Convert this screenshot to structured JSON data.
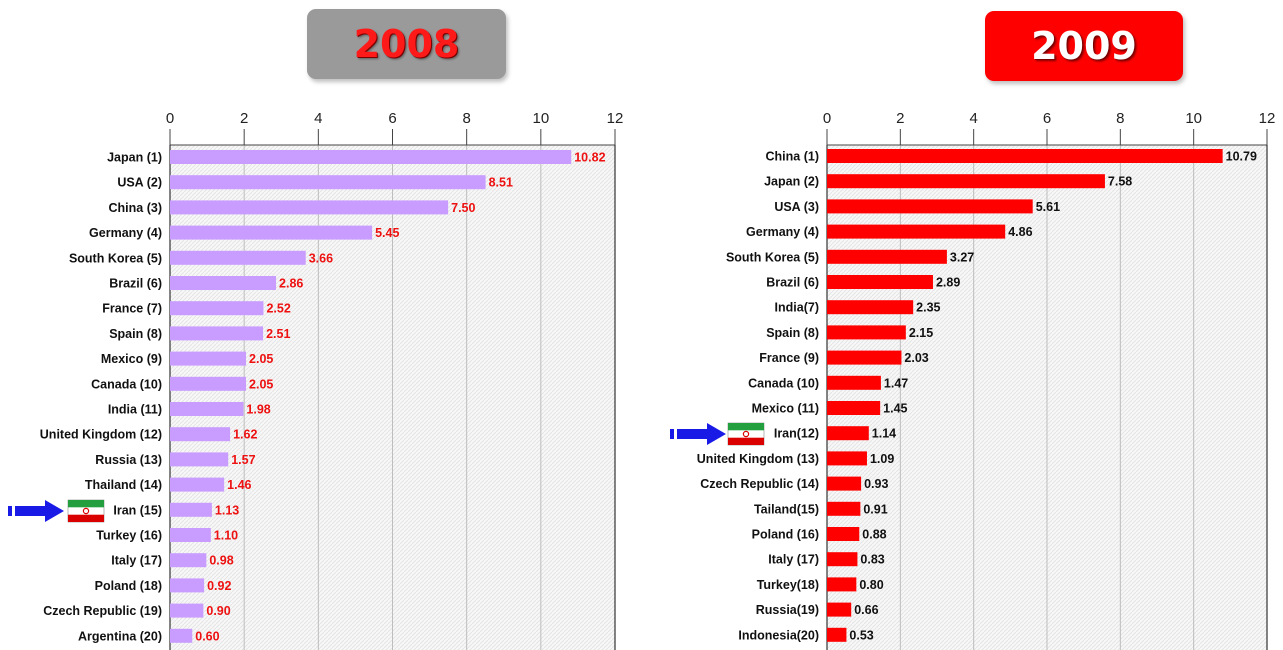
{
  "badges": {
    "left": "2008",
    "right": "2009"
  },
  "colors": {
    "bar_2008": "#c99cff",
    "bar_2009": "#ff0000",
    "value_2008": "#ee1111",
    "value_2009": "#111111",
    "arrow": "#1a1ae6",
    "badge_2008_bg": "#9a9a9a",
    "badge_2009_bg": "#ff0000"
  },
  "icons": [
    "blue-arrow-icon",
    "iran-flag-icon"
  ],
  "chart_data": [
    {
      "type": "bar",
      "orientation": "horizontal",
      "title": "2008",
      "xlim": [
        0,
        12
      ],
      "ticks": [
        0,
        2,
        4,
        6,
        8,
        10,
        12
      ],
      "grid": true,
      "highlight": "Iran (15)",
      "categories": [
        "Japan (1)",
        "USA (2)",
        "China (3)",
        "Germany (4)",
        "South Korea (5)",
        "Brazil (6)",
        "France (7)",
        "Spain (8)",
        "Mexico (9)",
        "Canada (10)",
        "India (11)",
        "United Kingdom (12)",
        "Russia (13)",
        "Thailand (14)",
        "Iran (15)",
        "Turkey (16)",
        "Italy (17)",
        "Poland (18)",
        "Czech Republic (19)",
        "Argentina (20)"
      ],
      "values": [
        10.82,
        8.51,
        7.5,
        5.45,
        3.66,
        2.86,
        2.52,
        2.51,
        2.05,
        2.05,
        1.98,
        1.62,
        1.57,
        1.46,
        1.13,
        1.1,
        0.98,
        0.92,
        0.9,
        0.6
      ],
      "value_labels": [
        "10.82",
        "8.51",
        "7.50",
        "5.45",
        "3.66",
        "2.86",
        "2.52",
        "2.51",
        "2.05",
        "2.05",
        "1.98",
        "1.62",
        "1.57",
        "1.46",
        "1.13",
        "1.10",
        "0.98",
        "0.92",
        "0.90",
        "0.60"
      ]
    },
    {
      "type": "bar",
      "orientation": "horizontal",
      "title": "2009",
      "xlim": [
        0,
        12
      ],
      "ticks": [
        0,
        2,
        4,
        6,
        8,
        10,
        12
      ],
      "grid": true,
      "highlight": "Iran(12)",
      "categories": [
        "China (1)",
        "Japan (2)",
        "USA (3)",
        "Germany (4)",
        "South Korea (5)",
        "Brazil (6)",
        "India(7)",
        "Spain (8)",
        "France (9)",
        "Canada (10)",
        "Mexico (11)",
        "Iran(12)",
        "United Kingdom (13)",
        "Czech Republic (14)",
        "Tailand(15)",
        "Poland (16)",
        "Italy (17)",
        "Turkey(18)",
        "Russia(19)",
        "Indonesia(20)"
      ],
      "values": [
        10.79,
        7.58,
        5.61,
        4.86,
        3.27,
        2.89,
        2.35,
        2.15,
        2.03,
        1.47,
        1.45,
        1.14,
        1.09,
        0.93,
        0.91,
        0.88,
        0.83,
        0.8,
        0.66,
        0.53
      ],
      "value_labels": [
        "10.79",
        "7.58",
        "5.61",
        "4.86",
        "3.27",
        "2.89",
        "2.35",
        "2.15",
        "2.03",
        "1.47",
        "1.45",
        "1.14",
        "1.09",
        "0.93",
        "0.91",
        "0.88",
        "0.83",
        "0.80",
        "0.66",
        "0.53"
      ]
    }
  ]
}
